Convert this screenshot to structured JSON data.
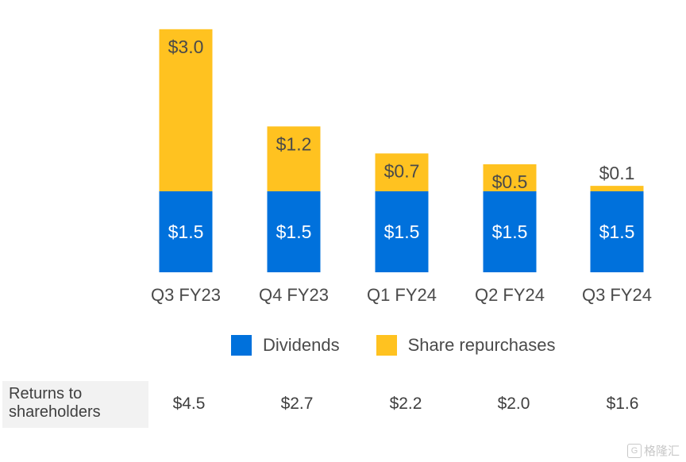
{
  "chart_data": {
    "type": "bar",
    "stacked": true,
    "categories": [
      "Q3 FY23",
      "Q4 FY23",
      "Q1 FY24",
      "Q2 FY24",
      "Q3 FY24"
    ],
    "series": [
      {
        "name": "Dividends",
        "color": "#0071dc",
        "values": [
          1.5,
          1.5,
          1.5,
          1.5,
          1.5
        ],
        "labels": [
          "$1.5",
          "$1.5",
          "$1.5",
          "$1.5",
          "$1.5"
        ]
      },
      {
        "name": "Share repurchases",
        "color": "#ffc220",
        "values": [
          3.0,
          1.2,
          0.7,
          0.5,
          0.1
        ],
        "labels": [
          "$3.0",
          "$1.2",
          "$0.7",
          "$0.5",
          "$0.1"
        ]
      }
    ],
    "ylim": [
      0,
      4.6
    ],
    "legend_position": "bottom"
  },
  "totals": {
    "label": "Returns to shareholders",
    "values": [
      "$4.5",
      "$2.7",
      "$2.2",
      "$2.0",
      "$1.6"
    ]
  },
  "watermark": {
    "box": "G",
    "text": "格隆汇"
  }
}
